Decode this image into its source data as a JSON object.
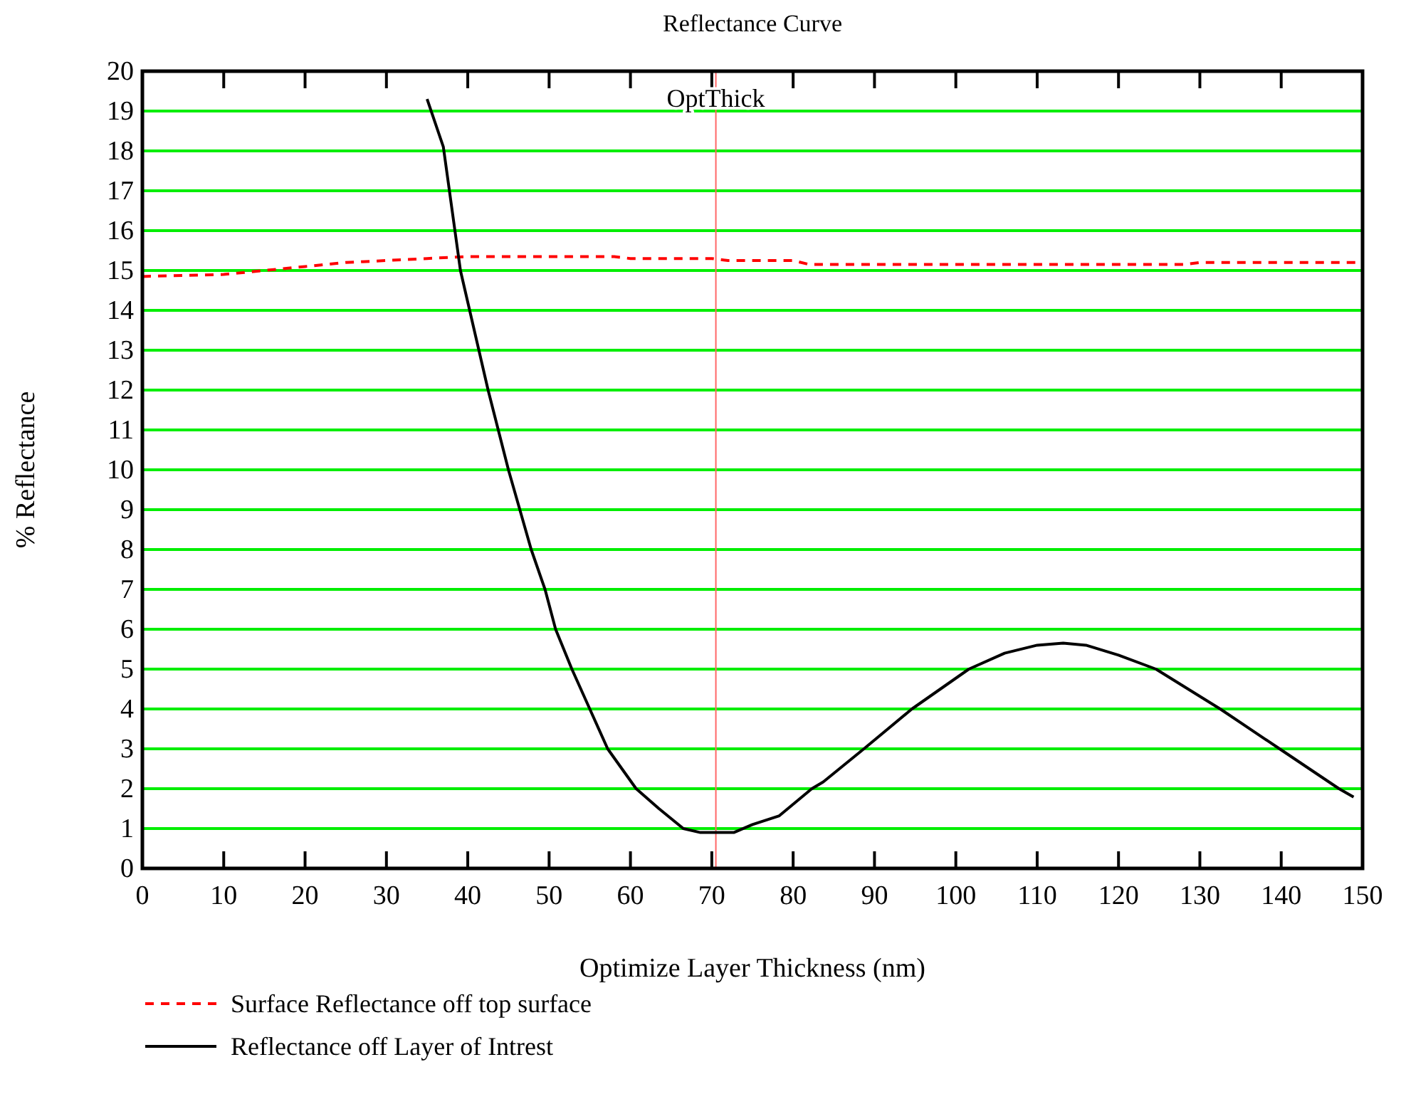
{
  "chart_data": {
    "type": "line",
    "title": "Reflectance Curve",
    "xlabel": "Optimize Layer Thickness (nm)",
    "ylabel": "% Reflectance",
    "xlim": [
      0,
      150
    ],
    "xticks": [
      0,
      10,
      20,
      30,
      40,
      50,
      60,
      70,
      80,
      90,
      100,
      110,
      120,
      130,
      140,
      150
    ],
    "ylim": [
      0,
      20
    ],
    "yticks": [
      0,
      1,
      2,
      3,
      4,
      5,
      6,
      7,
      8,
      9,
      10,
      11,
      12,
      13,
      14,
      15,
      16,
      17,
      18,
      19,
      20
    ],
    "grid": "y",
    "legend": "bottom left",
    "marker": "none",
    "ref_lines": [
      {
        "axis": "x",
        "value": 70.5,
        "label": "OptThick",
        "color": "#ff6666"
      }
    ],
    "series": [
      {
        "name": "Surface Reflectance off top surface",
        "color": "#ff0000",
        "line_style": "dashed",
        "x": [
          0,
          10,
          15,
          20,
          25,
          30,
          35,
          40,
          50,
          58,
          60,
          70,
          72,
          80,
          82,
          90,
          100,
          110,
          120,
          128,
          130,
          140,
          150
        ],
        "values": [
          14.85,
          14.9,
          15.0,
          15.1,
          15.2,
          15.25,
          15.3,
          15.35,
          15.35,
          15.35,
          15.3,
          15.3,
          15.25,
          15.25,
          15.15,
          15.15,
          15.15,
          15.15,
          15.15,
          15.15,
          15.2,
          15.2,
          15.2
        ]
      },
      {
        "name": "Reflectance off Layer of Intrest",
        "color": "#000000",
        "line_style": "solid",
        "x": [
          35,
          37,
          39.1,
          42.5,
          45,
          46.4,
          47.8,
          49.5,
          50.8,
          52.8,
          55,
          57.2,
          60.7,
          63.5,
          66.5,
          68.6,
          70.5,
          72.7,
          75,
          78.3,
          82.3,
          83.7,
          88.7,
          94.6,
          101.6,
          106,
          110,
          113.2,
          116,
          120,
          124.6,
          132.5,
          139.8,
          147.1,
          148.9
        ],
        "values": [
          19.3,
          18.1,
          15,
          12,
          10,
          9,
          8,
          7,
          6,
          5,
          4,
          3,
          2,
          1.5,
          1.0,
          0.9,
          0.9,
          0.9,
          1.1,
          1.32,
          2,
          2.17,
          3,
          4,
          5,
          5.4,
          5.6,
          5.65,
          5.6,
          5.35,
          5,
          4,
          3,
          2,
          1.79
        ]
      }
    ]
  }
}
